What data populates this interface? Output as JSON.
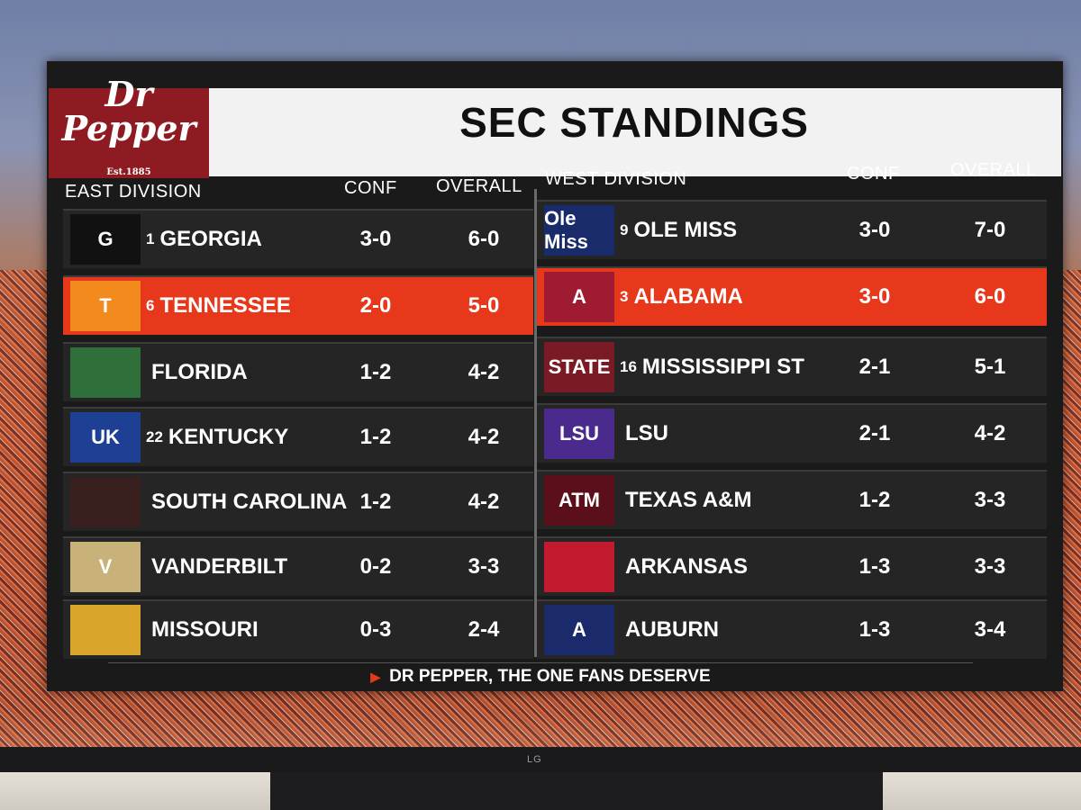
{
  "title": "SEC STANDINGS",
  "brand": {
    "line1": "Dr",
    "line2": "Pepper",
    "est": "Est.1885"
  },
  "east": {
    "label": "EAST DIVISION",
    "conf_label": "CONF",
    "overall_label": "OVERALL",
    "teams": [
      {
        "rank": "1",
        "name": "GEORGIA",
        "conf": "3-0",
        "overall": "6-0"
      },
      {
        "rank": "6",
        "name": "TENNESSEE",
        "conf": "2-0",
        "overall": "5-0"
      },
      {
        "rank": "",
        "name": "FLORIDA",
        "conf": "1-2",
        "overall": "4-2"
      },
      {
        "rank": "22",
        "name": "KENTUCKY",
        "conf": "1-2",
        "overall": "4-2"
      },
      {
        "rank": "",
        "name": "SOUTH CAROLINA",
        "conf": "1-2",
        "overall": "4-2"
      },
      {
        "rank": "",
        "name": "VANDERBILT",
        "conf": "0-2",
        "overall": "3-3"
      },
      {
        "rank": "",
        "name": "MISSOURI",
        "conf": "0-3",
        "overall": "2-4"
      }
    ]
  },
  "west": {
    "label": "WEST DIVISION",
    "conf_label": "CONF",
    "overall_label": "OVERALL",
    "teams": [
      {
        "rank": "9",
        "name": "OLE MISS",
        "conf": "3-0",
        "overall": "7-0"
      },
      {
        "rank": "3",
        "name": "ALABAMA",
        "conf": "3-0",
        "overall": "6-0"
      },
      {
        "rank": "16",
        "name": "MISSISSIPPI ST",
        "conf": "2-1",
        "overall": "5-1"
      },
      {
        "rank": "",
        "name": "LSU",
        "conf": "2-1",
        "overall": "4-2"
      },
      {
        "rank": "",
        "name": "TEXAS A&M",
        "conf": "1-2",
        "overall": "3-3"
      },
      {
        "rank": "",
        "name": "ARKANSAS",
        "conf": "1-3",
        "overall": "3-3"
      },
      {
        "rank": "",
        "name": "AUBURN",
        "conf": "1-3",
        "overall": "3-4"
      }
    ]
  },
  "logos": {
    "east": [
      "G",
      "T",
      "",
      "UK",
      "",
      "V",
      ""
    ],
    "west": [
      "Ole Miss",
      "A",
      "STATE",
      "LSU",
      "ATM",
      "",
      "A"
    ]
  },
  "footer": "DR PEPPER, THE ONE FANS DESERVE",
  "tv_brand": "LG",
  "colors": {
    "highlight": "#e8381c",
    "brand": "#8e1b22",
    "panel": "#1a1a1a"
  }
}
